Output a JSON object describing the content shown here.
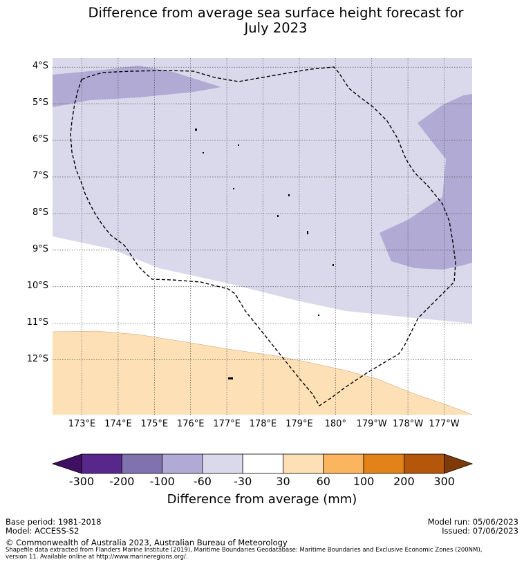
{
  "title": {
    "line1": "Difference from average sea surface height forecast for",
    "line2": "July 2023"
  },
  "map": {
    "lat_labels": [
      "4°S",
      "5°S",
      "6°S",
      "7°S",
      "8°S",
      "9°S",
      "10°S",
      "11°S",
      "12°S"
    ],
    "lon_labels": [
      "173°E",
      "174°E",
      "175°E",
      "176°E",
      "177°E",
      "178°E",
      "179°E",
      "180°",
      "179°W",
      "178°W",
      "177°W"
    ],
    "lat_range": [
      -13.5,
      -3.75
    ],
    "lon_range": [
      172.2,
      183.7
    ]
  },
  "colorbar": {
    "labels": [
      "-300",
      "-200",
      "-100",
      "-60",
      "-30",
      "30",
      "60",
      "100",
      "200",
      "300"
    ],
    "colors": [
      "#3f0f62",
      "#57278c",
      "#7f72ae",
      "#b0aad4",
      "#d9d9eb",
      "#ffffff",
      "#fde0b6",
      "#fbb55e",
      "#e2831a",
      "#b5570a",
      "#7f3a08"
    ],
    "title": "Difference from average (mm)"
  },
  "footer": {
    "base_period": "Base period: 1981-2018",
    "model": "Model: ACCESS-S2",
    "model_run": "Model run: 05/06/2023",
    "issued": "Issued: 07/06/2023",
    "copyright": "© Commonwealth of Australia 2023, Australian Bureau of Meteorology",
    "shapefile_line1": "Shapefile data extracted from Flanders Marine Institute (2019), Maritime Boundaries Geodatabase: Maritime Boundaries and Exclusive Economic Zones (200NM),",
    "shapefile_line2": "version 11. Available online at http://www.marineregions.org/."
  }
}
